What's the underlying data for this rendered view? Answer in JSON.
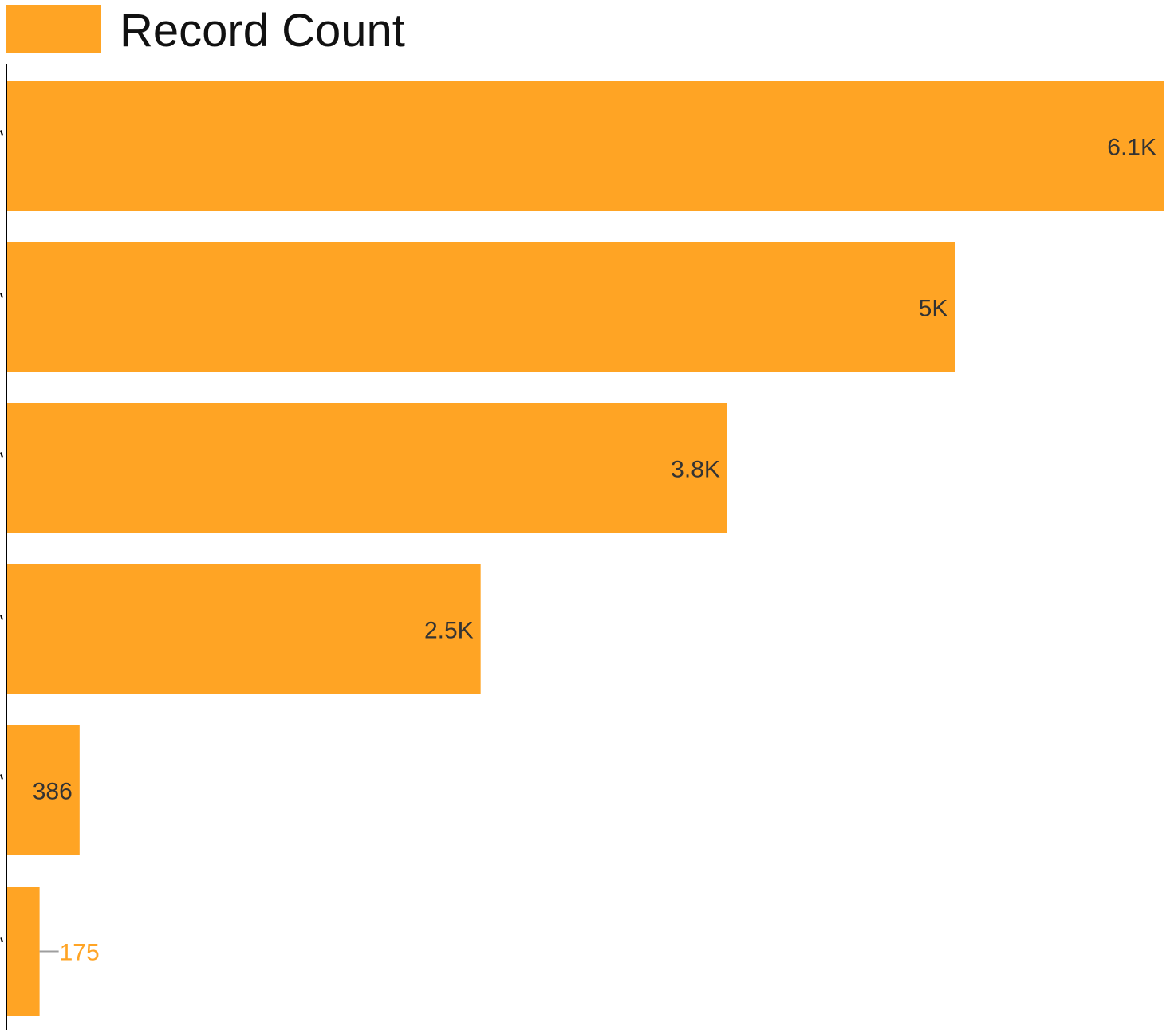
{
  "chart_data": {
    "type": "bar",
    "orientation": "horizontal",
    "categories": [
      "",
      "",
      "",
      "",
      "",
      ""
    ],
    "series": [
      {
        "name": "Record Count",
        "values": [
          6100,
          5000,
          3800,
          2500,
          386,
          175
        ],
        "labels": [
          "6.1K",
          "5K",
          "3.8K",
          "2.5K",
          "386",
          "175"
        ],
        "color": "#FFA424"
      }
    ],
    "xlim": [
      0,
      6100
    ],
    "legend": {
      "position": "top-left",
      "label": "Record Count"
    },
    "grid": false,
    "colors": {
      "bar": "#FFA424",
      "axis": "#000000",
      "label_inside": "#333333",
      "leader_line": "#9e9e9e"
    }
  }
}
